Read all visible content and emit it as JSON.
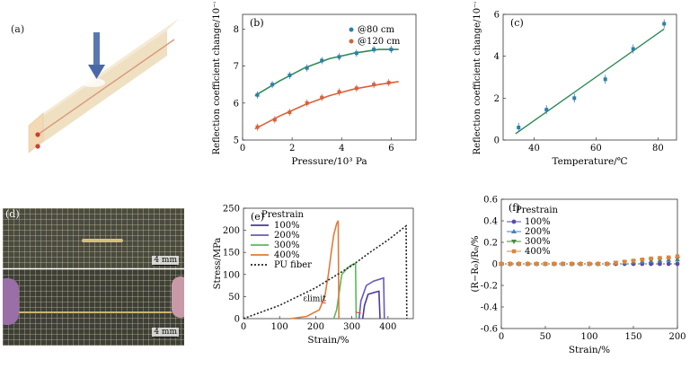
{
  "panels": {
    "a": {
      "label": "(a)"
    },
    "d": {
      "label": "(d)",
      "scale_top": "4 mm",
      "scale_bottom": "4 mm"
    }
  },
  "chart_data": [
    {
      "id": "b",
      "type": "scatter",
      "label": "(b)",
      "xlabel": "Pressure/10³ Pa",
      "ylabel": "Reflection coefficient change/10⁻⁴",
      "xlim": [
        0,
        7
      ],
      "ylim": [
        5,
        8.4
      ],
      "xticks": [
        0,
        2,
        4,
        6
      ],
      "yticks": [
        5,
        6,
        7,
        8
      ],
      "legend": "top-right",
      "series": [
        {
          "name": "@80 cm",
          "color": "#2f7fa8",
          "fit_color": "#2e8b57",
          "x": [
            0.6,
            1.2,
            1.9,
            2.6,
            3.2,
            3.9,
            4.6,
            5.3,
            6.0
          ],
          "y": [
            6.22,
            6.5,
            6.75,
            6.95,
            7.15,
            7.25,
            7.35,
            7.45,
            7.45
          ],
          "fit": [
            [
              0.5,
              6.2
            ],
            [
              1.5,
              6.6
            ],
            [
              2.5,
              6.95
            ],
            [
              3.5,
              7.2
            ],
            [
              4.5,
              7.35
            ],
            [
              5.5,
              7.45
            ],
            [
              6.3,
              7.45
            ]
          ]
        },
        {
          "name": "@120 cm",
          "color": "#d9613a",
          "fit_color": "#d9613a",
          "x": [
            0.6,
            1.3,
            1.9,
            2.6,
            3.2,
            3.9,
            4.6,
            5.3,
            5.9
          ],
          "y": [
            5.35,
            5.55,
            5.75,
            6.0,
            6.15,
            6.3,
            6.4,
            6.5,
            6.55
          ],
          "fit": [
            [
              0.5,
              5.3
            ],
            [
              1.5,
              5.65
            ],
            [
              2.5,
              5.95
            ],
            [
              3.5,
              6.2
            ],
            [
              4.5,
              6.38
            ],
            [
              5.5,
              6.5
            ],
            [
              6.3,
              6.58
            ]
          ]
        }
      ]
    },
    {
      "id": "c",
      "type": "scatter",
      "label": "(c)",
      "xlabel": "Temperature/℃",
      "ylabel": "Reflection coefficient change/10⁻⁴",
      "xlim": [
        30,
        86
      ],
      "ylim": [
        0,
        6
      ],
      "xticks": [
        40,
        60,
        80
      ],
      "yticks": [
        0,
        2,
        4,
        6
      ],
      "series": [
        {
          "name": "data",
          "color": "#2f7fa8",
          "fit_color": "#2e8b57",
          "x": [
            35,
            44,
            53,
            63,
            72,
            82
          ],
          "y": [
            0.6,
            1.45,
            2.0,
            2.9,
            4.35,
            5.55
          ],
          "fit": [
            [
              34,
              0.3
            ],
            [
              82,
              5.3
            ]
          ]
        }
      ]
    },
    {
      "id": "e",
      "type": "line",
      "label": "(e)",
      "xlabel": "Strain/%",
      "ylabel": "Stress/MPa",
      "xlim": [
        0,
        470
      ],
      "ylim": [
        0,
        250
      ],
      "xticks": [
        0,
        100,
        200,
        300,
        400
      ],
      "yticks": [
        0,
        50,
        100,
        150,
        200,
        250
      ],
      "legend_title": "Prestrain",
      "annotation": "εlimit",
      "series": [
        {
          "name": "100%",
          "color": "#4a3a9a",
          "points": [
            [
              330,
              0
            ],
            [
              335,
              30
            ],
            [
              345,
              55
            ],
            [
              365,
              60
            ],
            [
              375,
              62
            ],
            [
              378,
              0
            ]
          ]
        },
        {
          "name": "200%",
          "color": "#6a5ab8",
          "points": [
            [
              320,
              0
            ],
            [
              325,
              40
            ],
            [
              340,
              75
            ],
            [
              360,
              85
            ],
            [
              380,
              90
            ],
            [
              388,
              92
            ],
            [
              390,
              0
            ]
          ]
        },
        {
          "name": "300%",
          "color": "#5cb85c",
          "points": [
            [
              250,
              0
            ],
            [
              258,
              20
            ],
            [
              265,
              60
            ],
            [
              272,
              100
            ],
            [
              288,
              115
            ],
            [
              300,
              122
            ],
            [
              310,
              125
            ],
            [
              312,
              0
            ]
          ]
        },
        {
          "name": "400%",
          "color": "#e07b39",
          "points": [
            [
              130,
              0
            ],
            [
              175,
              5
            ],
            [
              210,
              20
            ],
            [
              225,
              50
            ],
            [
              235,
              100
            ],
            [
              243,
              150
            ],
            [
              250,
              190
            ],
            [
              258,
              215
            ],
            [
              262,
              222
            ],
            [
              264,
              0
            ]
          ]
        },
        {
          "name": "PU fiber",
          "color": "#222222",
          "dash": true,
          "points": [
            [
              0,
              0
            ],
            [
              50,
              15
            ],
            [
              100,
              30
            ],
            [
              150,
              50
            ],
            [
              200,
              70
            ],
            [
              250,
              95
            ],
            [
              300,
              120
            ],
            [
              350,
              150
            ],
            [
              400,
              178
            ],
            [
              450,
              210
            ],
            [
              452,
              0
            ]
          ]
        }
      ]
    },
    {
      "id": "f",
      "type": "scatter",
      "label": "(f)",
      "xlabel": "Strain/%",
      "ylabel": "(R−R₀)/R₀/%",
      "xlim": [
        0,
        200
      ],
      "ylim": [
        -0.6,
        0.6
      ],
      "xticks": [
        0,
        50,
        100,
        150,
        200
      ],
      "yticks": [
        -0.6,
        -0.4,
        -0.2,
        0,
        0.2,
        0.4,
        0.6
      ],
      "legend_title": "Prestrain",
      "series": [
        {
          "name": "100%",
          "color": "#5b4aa8",
          "marker": "circle",
          "x": [
            0,
            10,
            20,
            30,
            40,
            50,
            60,
            70,
            80,
            90,
            100,
            110,
            120,
            130,
            140,
            150,
            160,
            170,
            180,
            190,
            200
          ],
          "y": [
            0,
            0,
            0,
            0,
            0,
            0,
            0,
            0,
            0,
            0,
            0,
            0,
            0,
            0,
            0,
            0,
            0,
            0,
            0,
            0,
            0
          ]
        },
        {
          "name": "200%",
          "color": "#4a7fc0",
          "marker": "triangle",
          "x": [
            0,
            10,
            20,
            30,
            40,
            50,
            60,
            70,
            80,
            90,
            100,
            110,
            120,
            130,
            140,
            150,
            160,
            170,
            180,
            190,
            200
          ],
          "y": [
            0,
            0,
            0,
            0,
            0,
            0,
            0,
            0,
            0,
            0,
            0,
            0,
            0,
            0.005,
            0.01,
            0.015,
            0.02,
            0.025,
            0.03,
            0.035,
            0.04
          ]
        },
        {
          "name": "300%",
          "color": "#4a8a3a",
          "marker": "triangle-down",
          "x": [
            0,
            10,
            20,
            30,
            40,
            50,
            60,
            70,
            80,
            90,
            100,
            110,
            120,
            130,
            140,
            150,
            160,
            170,
            180,
            190,
            200
          ],
          "y": [
            0,
            0,
            0,
            0,
            0,
            0,
            0,
            0,
            0,
            0,
            0,
            0,
            0,
            0.01,
            0.015,
            0.02,
            0.03,
            0.035,
            0.04,
            0.045,
            0.05
          ]
        },
        {
          "name": "400%",
          "color": "#e0843a",
          "marker": "square",
          "x": [
            0,
            10,
            20,
            30,
            40,
            50,
            60,
            70,
            80,
            90,
            100,
            110,
            120,
            130,
            140,
            150,
            160,
            170,
            180,
            190,
            200
          ],
          "y": [
            0,
            0,
            0,
            0,
            0,
            0,
            0,
            0,
            0,
            0,
            0,
            0,
            0,
            0.01,
            0.02,
            0.03,
            0.04,
            0.05,
            0.055,
            0.06,
            0.07
          ]
        }
      ]
    }
  ]
}
